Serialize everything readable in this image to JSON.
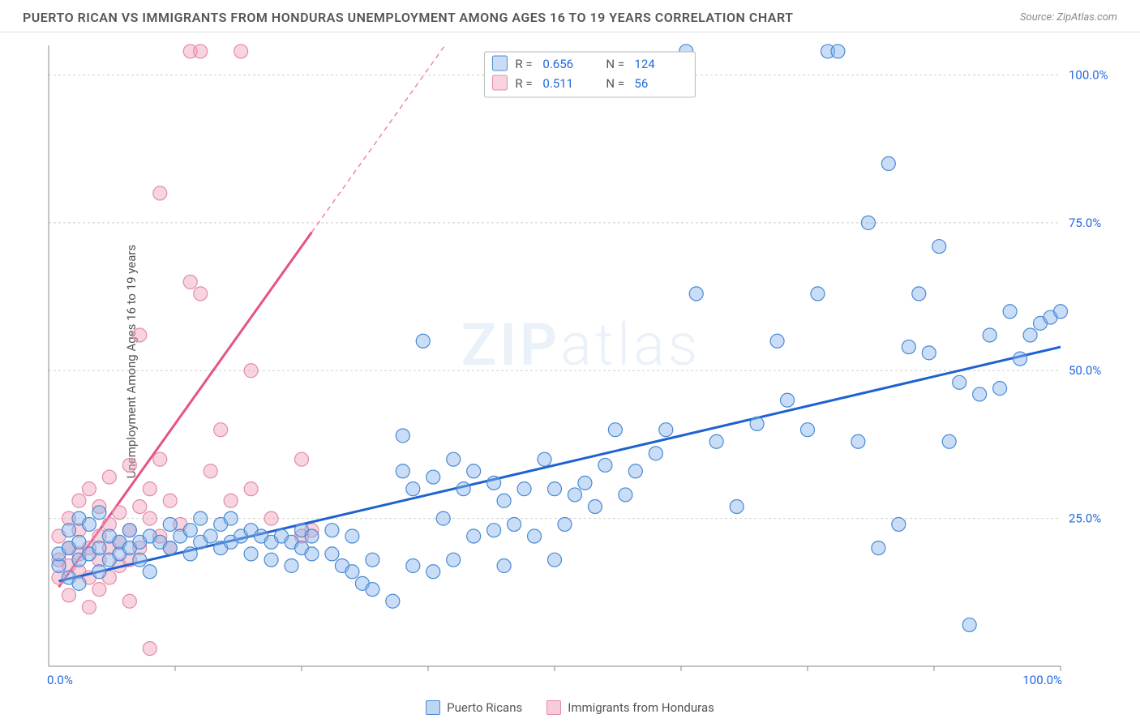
{
  "title": "PUERTO RICAN VS IMMIGRANTS FROM HONDURAS UNEMPLOYMENT AMONG AGES 16 TO 19 YEARS CORRELATION CHART",
  "source": "Source: ZipAtlas.com",
  "y_axis_label": "Unemployment Among Ages 16 to 19 years",
  "watermark": "ZIPatlas",
  "chart": {
    "type": "scatter",
    "xlim": [
      0,
      100
    ],
    "ylim": [
      0,
      105
    ],
    "x_axis_label_min": "0.0%",
    "x_axis_label_max": "100.0%",
    "y_ticks": [
      {
        "v": 25,
        "label": "25.0%"
      },
      {
        "v": 50,
        "label": "50.0%"
      },
      {
        "v": 75,
        "label": "75.0%"
      },
      {
        "v": 100,
        "label": "100.0%"
      }
    ],
    "x_minor_ticks": [
      12.5,
      25,
      37.5,
      50,
      62.5,
      75,
      87.5,
      100
    ],
    "background_color": "#ffffff",
    "grid_color": "#d0d0d0",
    "axis_color": "#888888",
    "series": [
      {
        "name": "Puerto Ricans",
        "color_fill": "rgba(135,180,235,0.45)",
        "color_stroke": "#4a8ad4",
        "line_color": "#1e62d0",
        "line_dash_color": "#1e62d0",
        "R": "0.656",
        "N": "124",
        "reg_intercept": 14,
        "reg_slope": 0.4,
        "data": [
          [
            1,
            17
          ],
          [
            1,
            19
          ],
          [
            2,
            20
          ],
          [
            2,
            15
          ],
          [
            2,
            23
          ],
          [
            3,
            21
          ],
          [
            3,
            14
          ],
          [
            3,
            18
          ],
          [
            3,
            25
          ],
          [
            4,
            24
          ],
          [
            4,
            19
          ],
          [
            5,
            20
          ],
          [
            5,
            16
          ],
          [
            5,
            26
          ],
          [
            6,
            22
          ],
          [
            6,
            18
          ],
          [
            7,
            19
          ],
          [
            7,
            21
          ],
          [
            8,
            20
          ],
          [
            8,
            23
          ],
          [
            9,
            21
          ],
          [
            9,
            18
          ],
          [
            10,
            22
          ],
          [
            10,
            16
          ],
          [
            11,
            21
          ],
          [
            12,
            20
          ],
          [
            12,
            24
          ],
          [
            13,
            22
          ],
          [
            14,
            19
          ],
          [
            14,
            23
          ],
          [
            15,
            21
          ],
          [
            15,
            25
          ],
          [
            16,
            22
          ],
          [
            17,
            20
          ],
          [
            17,
            24
          ],
          [
            18,
            25
          ],
          [
            18,
            21
          ],
          [
            19,
            22
          ],
          [
            20,
            23
          ],
          [
            20,
            19
          ],
          [
            21,
            22
          ],
          [
            22,
            21
          ],
          [
            22,
            18
          ],
          [
            23,
            22
          ],
          [
            24,
            21
          ],
          [
            24,
            17
          ],
          [
            25,
            20
          ],
          [
            25,
            23
          ],
          [
            26,
            22
          ],
          [
            26,
            19
          ],
          [
            28,
            23
          ],
          [
            28,
            19
          ],
          [
            29,
            17
          ],
          [
            30,
            22
          ],
          [
            30,
            16
          ],
          [
            31,
            14
          ],
          [
            32,
            18
          ],
          [
            32,
            13
          ],
          [
            34,
            11
          ],
          [
            35,
            39
          ],
          [
            35,
            33
          ],
          [
            36,
            30
          ],
          [
            36,
            17
          ],
          [
            37,
            55
          ],
          [
            38,
            32
          ],
          [
            38,
            16
          ],
          [
            39,
            25
          ],
          [
            40,
            35
          ],
          [
            40,
            18
          ],
          [
            41,
            30
          ],
          [
            42,
            22
          ],
          [
            42,
            33
          ],
          [
            44,
            23
          ],
          [
            44,
            31
          ],
          [
            45,
            28
          ],
          [
            45,
            17
          ],
          [
            46,
            24
          ],
          [
            47,
            30
          ],
          [
            48,
            22
          ],
          [
            49,
            35
          ],
          [
            50,
            30
          ],
          [
            50,
            18
          ],
          [
            51,
            24
          ],
          [
            52,
            29
          ],
          [
            53,
            31
          ],
          [
            54,
            27
          ],
          [
            55,
            34
          ],
          [
            56,
            40
          ],
          [
            57,
            29
          ],
          [
            58,
            33
          ],
          [
            60,
            36
          ],
          [
            61,
            40
          ],
          [
            63,
            104
          ],
          [
            64,
            63
          ],
          [
            66,
            38
          ],
          [
            68,
            27
          ],
          [
            70,
            41
          ],
          [
            72,
            55
          ],
          [
            73,
            45
          ],
          [
            75,
            40
          ],
          [
            76,
            63
          ],
          [
            77,
            104
          ],
          [
            78,
            104
          ],
          [
            80,
            38
          ],
          [
            81,
            75
          ],
          [
            82,
            20
          ],
          [
            83,
            85
          ],
          [
            84,
            24
          ],
          [
            85,
            54
          ],
          [
            86,
            63
          ],
          [
            87,
            53
          ],
          [
            88,
            71
          ],
          [
            89,
            38
          ],
          [
            90,
            48
          ],
          [
            91,
            7
          ],
          [
            92,
            46
          ],
          [
            93,
            56
          ],
          [
            94,
            47
          ],
          [
            95,
            60
          ],
          [
            96,
            52
          ],
          [
            97,
            56
          ],
          [
            98,
            58
          ],
          [
            99,
            59
          ],
          [
            100,
            60
          ]
        ]
      },
      {
        "name": "Immigrants from Honduras",
        "color_fill": "rgba(240,160,185,0.45)",
        "color_stroke": "#e38bab",
        "line_color": "#e65288",
        "line_dash_color": "#e65288",
        "R": "0.511",
        "N": "56",
        "reg_intercept": 11,
        "reg_slope": 2.4,
        "data": [
          [
            1,
            18
          ],
          [
            1,
            22
          ],
          [
            1,
            15
          ],
          [
            2,
            20
          ],
          [
            2,
            17
          ],
          [
            2,
            25
          ],
          [
            2,
            12
          ],
          [
            3,
            19
          ],
          [
            3,
            23
          ],
          [
            3,
            16
          ],
          [
            3,
            28
          ],
          [
            4,
            20
          ],
          [
            4,
            15
          ],
          [
            4,
            30
          ],
          [
            4,
            10
          ],
          [
            5,
            22
          ],
          [
            5,
            27
          ],
          [
            5,
            18
          ],
          [
            5,
            13
          ],
          [
            6,
            24
          ],
          [
            6,
            20
          ],
          [
            6,
            15
          ],
          [
            6,
            32
          ],
          [
            7,
            21
          ],
          [
            7,
            26
          ],
          [
            7,
            17
          ],
          [
            8,
            23
          ],
          [
            8,
            34
          ],
          [
            8,
            18
          ],
          [
            8,
            11
          ],
          [
            9,
            27
          ],
          [
            9,
            20
          ],
          [
            9,
            56
          ],
          [
            10,
            25
          ],
          [
            10,
            30
          ],
          [
            10,
            3
          ],
          [
            11,
            22
          ],
          [
            11,
            35
          ],
          [
            11,
            80
          ],
          [
            12,
            28
          ],
          [
            12,
            20
          ],
          [
            13,
            24
          ],
          [
            14,
            104
          ],
          [
            14,
            65
          ],
          [
            15,
            104
          ],
          [
            15,
            63
          ],
          [
            16,
            33
          ],
          [
            17,
            40
          ],
          [
            18,
            28
          ],
          [
            19,
            104
          ],
          [
            20,
            50
          ],
          [
            20,
            30
          ],
          [
            22,
            25
          ],
          [
            25,
            35
          ],
          [
            25,
            22
          ],
          [
            26,
            23
          ]
        ]
      }
    ]
  },
  "bottom_legend": [
    {
      "label": "Puerto Ricans",
      "fill": "rgba(135,180,235,0.55)",
      "stroke": "#4a8ad4"
    },
    {
      "label": "Immigrants from Honduras",
      "fill": "rgba(240,160,185,0.55)",
      "stroke": "#e38bab"
    }
  ]
}
